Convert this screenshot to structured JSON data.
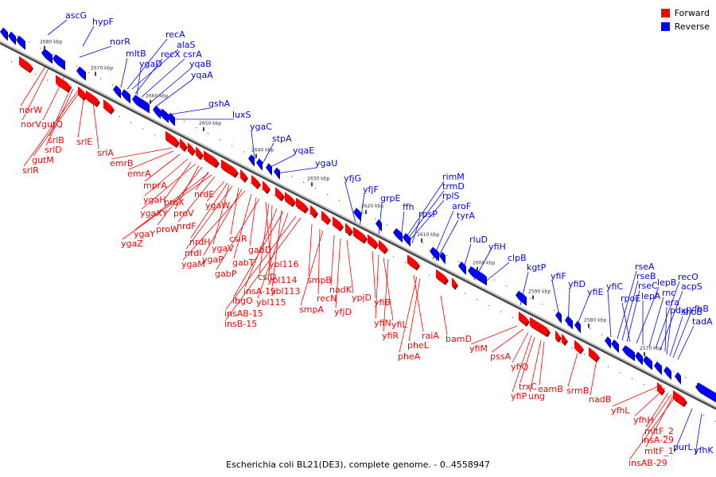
{
  "caption": "Escherichia coli BL21(DE3), complete genome. - 0..4558947",
  "legend": {
    "forward": {
      "label": "Forward",
      "color": "#ff0000"
    },
    "reverse": {
      "label": "Reverse",
      "color": "#0000ff"
    }
  },
  "colors": {
    "forward": "#ff0000",
    "reverse": "#0000ff",
    "axis": "#888888"
  },
  "ticks": [
    "2680 kbp",
    "2670 kbp",
    "2660 kbp",
    "2650 kbp",
    "2640 kbp",
    "2630 kbp",
    "2620 kbp",
    "2610 kbp",
    "2600 kbp",
    "2590 kbp",
    "2580 kbp",
    "2570 kbp"
  ],
  "reverse_labels": [
    "ascG",
    "hypF",
    "norR",
    "mltB",
    "recA",
    "alaS",
    "recX",
    "csrA",
    "ygaD",
    "yqaB",
    "yqaA",
    "gshA",
    "luxS",
    "ygaC",
    "stpA",
    "yqaE",
    "ygaU",
    "yfjG",
    "yfjF",
    "grpE",
    "rimM",
    "trmD",
    "rplS",
    "ffh",
    "rpsP",
    "aroF",
    "tyrA",
    "rluD",
    "yfiH",
    "clpB",
    "kgtP",
    "yfiF",
    "yfiD",
    "yfiE",
    "yfiC",
    "rseA",
    "rseB",
    "rseC",
    "lepB",
    "rpoE",
    "lepA",
    "rnc",
    "recO",
    "acpS",
    "era",
    "pdxJ",
    "shoB",
    "yfhB",
    "tadA",
    "purL",
    "yfhK"
  ],
  "forward_labels": [
    "norW",
    "norV",
    "gutQ",
    "srlD",
    "srlB",
    "srlE",
    "gutM",
    "srlR",
    "srlA",
    "emrB",
    "emrA",
    "mprA",
    "ygaH",
    "proX",
    "ygaXY",
    "proV",
    "proW",
    "nrdE",
    "nrdF",
    "ygaY",
    "ygaZ",
    "ygaW",
    "nrdH",
    "ygaV",
    "nrdI",
    "csiR",
    "ygaP",
    "ygaM",
    "gabT",
    "gabD",
    "gabP",
    "ybl116",
    "csiD",
    "ybl114",
    "insA-15",
    "ybl113",
    "lhgO",
    "ybl115",
    "insAB-15",
    "insB-15",
    "smpB",
    "recN",
    "smpA",
    "nadK",
    "yfjD",
    "ypjD",
    "yfiB",
    "yfiN",
    "yfiL",
    "yfiR",
    "raiA",
    "pheL",
    "pheA",
    "bamD",
    "yfiM",
    "pssA",
    "yfiQ",
    "trxC",
    "eamB",
    "yfiP",
    "ung",
    "srmB",
    "nadB",
    "yfhL",
    "yfhH",
    "mltF_2",
    "insA-29",
    "mltF_1",
    "insAB-29"
  ]
}
